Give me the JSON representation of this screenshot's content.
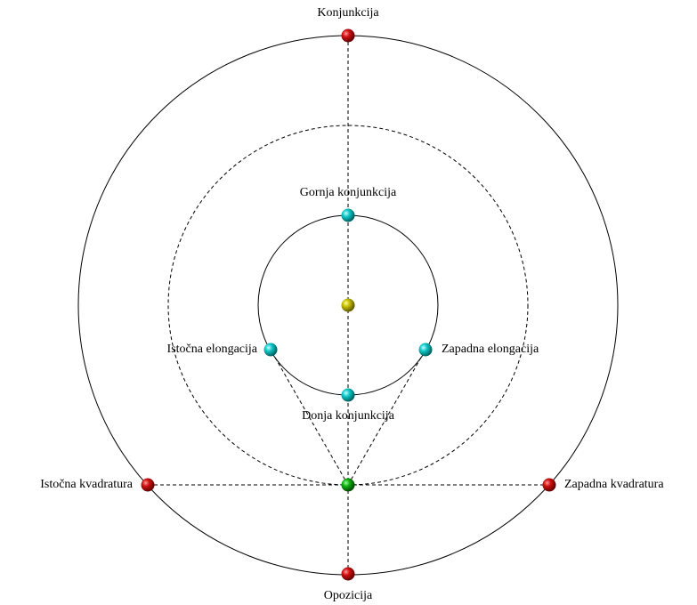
{
  "nodes": [
    {
      "label": "Konjunkcija"
    },
    {
      "label": "Gornja konjunkcija"
    },
    {
      "label": "Istočna elongacija"
    },
    {
      "label": "Zapadna elongacija"
    },
    {
      "label": "Donja konjunkcija"
    },
    {
      "label": "Istočna kvadratura"
    },
    {
      "label": "Zapadna kvadratura"
    },
    {
      "label": "Opozicija"
    }
  ]
}
